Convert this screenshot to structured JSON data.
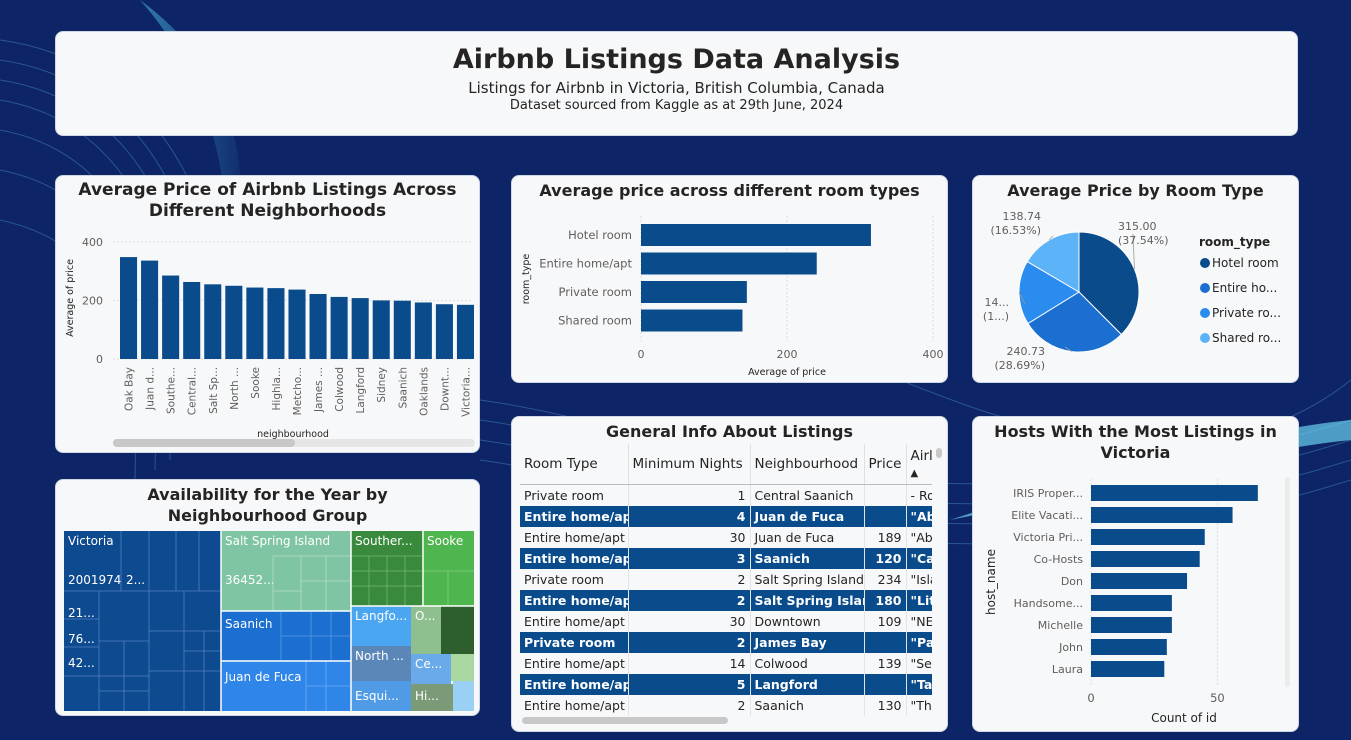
{
  "header": {
    "title": "Airbnb Listings Data Analysis",
    "subtitle": "Listings for Airbnb in Victoria, British Columbia, Canada",
    "source": "Dataset sourced from Kaggle as at 29th June, 2024"
  },
  "colors": {
    "background": "#0d2466",
    "bar": "#0a4b8c",
    "pie": [
      "#0a4b8c",
      "#1a6fd1",
      "#2b8cf0",
      "#5db3f7"
    ]
  },
  "chart_data": [
    {
      "id": "neigh_price",
      "type": "bar",
      "title": "Average Price of Airbnb Listings Across Different Neighborhoods",
      "xlabel": "neighbourhood",
      "ylabel": "Average of price",
      "ylim": [
        0,
        420
      ],
      "yticks": [
        "0",
        "200",
        "400"
      ],
      "categories": [
        "Oak Bay",
        "Juan d...",
        "Southe...",
        "Central...",
        "Salt Sp...",
        "North ...",
        "Sooke",
        "Highla...",
        "Metcho...",
        "James ...",
        "Colwood",
        "Langford",
        "Sidney",
        "Saanich",
        "Oaklands",
        "Downt...",
        "Victoria..."
      ],
      "values": [
        348,
        336,
        285,
        263,
        255,
        250,
        244,
        242,
        237,
        222,
        212,
        208,
        200,
        199,
        193,
        187,
        185
      ],
      "grid": true
    },
    {
      "id": "room_price",
      "type": "bar",
      "orientation": "horizontal",
      "title": "Average price across different room types",
      "xlabel": "Average of price",
      "ylabel": "room_type",
      "xlim": [
        0,
        400
      ],
      "xticks": [
        "0",
        "200",
        "400"
      ],
      "categories": [
        "Hotel room",
        "Entire home/apt",
        "Private room",
        "Shared room"
      ],
      "values": [
        315.0,
        240.73,
        145,
        139
      ]
    },
    {
      "id": "room_pie",
      "type": "pie",
      "title": "Average Price by Room Type",
      "legend_title": "room_type",
      "legend": [
        "Hotel room",
        "Entire ho...",
        "Private ro...",
        "Shared ro..."
      ],
      "values": [
        315.0,
        240.73,
        145,
        138.74
      ],
      "labels": [
        {
          "value": "315.00",
          "pct": "(37.54%)"
        },
        {
          "value": "240.73",
          "pct": "(28.69%)"
        },
        {
          "value": "14...",
          "pct": "(1...)"
        },
        {
          "value": "138.74",
          "pct": "(16.53%)"
        }
      ],
      "legend_placement": "right"
    },
    {
      "id": "hosts",
      "type": "bar",
      "orientation": "horizontal",
      "title": "Hosts With the Most Listings in Victoria",
      "xlabel": "Count of id",
      "ylabel": "host_name",
      "xlim": [
        0,
        72
      ],
      "xticks": [
        "0",
        "50"
      ],
      "categories": [
        "IRIS Proper...",
        "Elite Vacati...",
        "Victoria Pri...",
        "Co-Hosts",
        "Don",
        "Handsome...",
        "Michelle",
        "John",
        "Laura"
      ],
      "values": [
        66,
        56,
        45,
        43,
        38,
        32,
        32,
        30,
        29
      ]
    },
    {
      "id": "availability",
      "type": "treemap",
      "title": "Availability for the Year by Neighbourhood Group",
      "groups": [
        {
          "name": "Victoria",
          "value": "2001974",
          "extra": "2...",
          "sub": [
            "21...",
            "76...",
            "42..."
          ]
        },
        {
          "name": "Salt Spring Island",
          "value": "36452..."
        },
        {
          "name": "Souther..."
        },
        {
          "name": "Sooke"
        },
        {
          "name": "Saanich"
        },
        {
          "name": "Juan de Fuca"
        },
        {
          "name": "Langfo..."
        },
        {
          "name": "O..."
        },
        {
          "name": "North ..."
        },
        {
          "name": "Ce..."
        },
        {
          "name": "Esqui..."
        },
        {
          "name": "Hi..."
        }
      ]
    }
  ],
  "table": {
    "title": "General Info About Listings",
    "columns": [
      "Room Type",
      "Minimum Nights",
      "Neighbourhood",
      "Price",
      "Airl"
    ],
    "rows": [
      [
        "Private room",
        "1",
        "Central Saanich",
        "",
        "- Ro"
      ],
      [
        "Entire home/apt",
        "4",
        "Juan de Fuca",
        "",
        "\"Ab"
      ],
      [
        "Entire home/apt",
        "30",
        "Juan de Fuca",
        "189",
        "\"Ab"
      ],
      [
        "Entire home/apt",
        "3",
        "Saanich",
        "120",
        "\"Ca"
      ],
      [
        "Private room",
        "2",
        "Salt Spring Island",
        "234",
        "\"Isla"
      ],
      [
        "Entire home/apt",
        "2",
        "Salt Spring Island",
        "180",
        "\"Lit"
      ],
      [
        "Entire home/apt",
        "30",
        "Downtown",
        "109",
        "\"NE"
      ],
      [
        "Private room",
        "2",
        "James Bay",
        "",
        "\"Pa"
      ],
      [
        "Entire home/apt",
        "14",
        "Colwood",
        "139",
        "\"Se"
      ],
      [
        "Entire home/apt",
        "5",
        "Langford",
        "",
        "\"Tar"
      ],
      [
        "Entire home/apt",
        "2",
        "Saanich",
        "130",
        "\"Th"
      ]
    ]
  }
}
